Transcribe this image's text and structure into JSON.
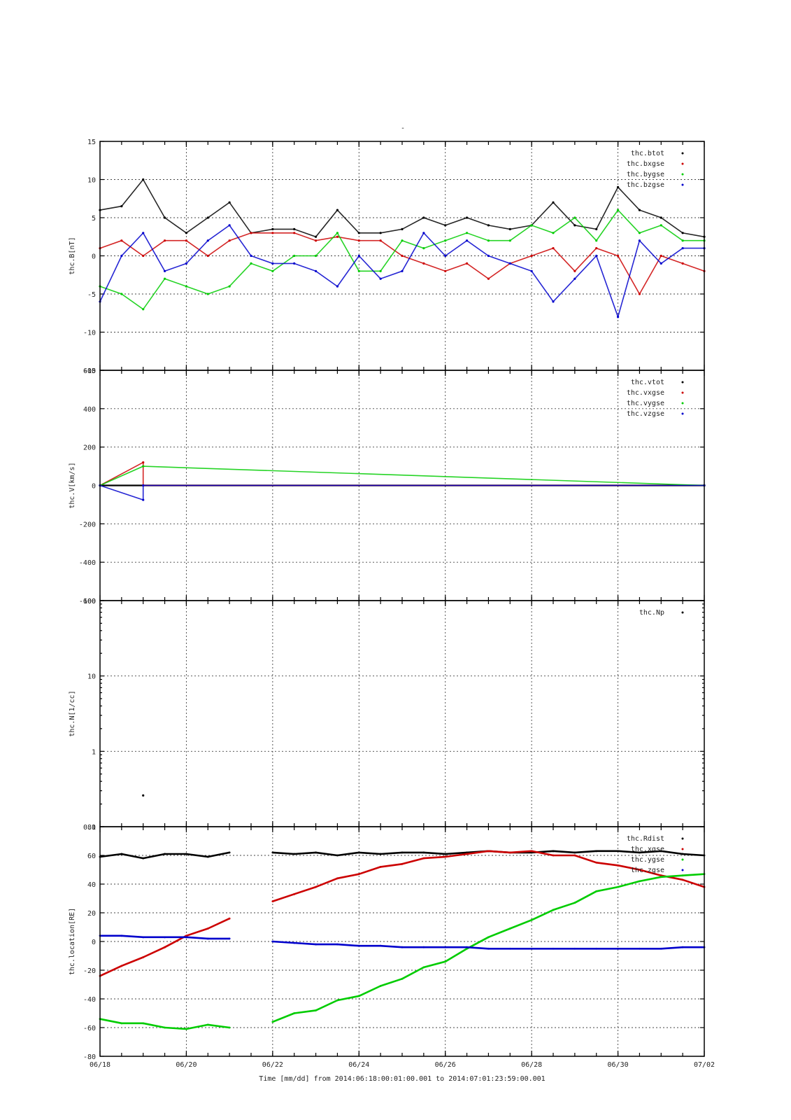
{
  "page_title": "-",
  "x_axis": {
    "title": "Time [mm/dd]  from 2014:06:18:00:01:00.001  to  2014:07:01:23:59:00.001",
    "range_days": [
      0,
      14
    ],
    "tick_labels": [
      "06/18",
      "06/20",
      "06/22",
      "06/24",
      "06/26",
      "06/28",
      "06/30",
      "07/02"
    ]
  },
  "colors": {
    "black": "#000000",
    "red": "#cc0000",
    "green": "#00cc00",
    "blue": "#0000cc"
  },
  "chart_data": [
    {
      "type": "scatter",
      "ylabel": "thc.B[nT]",
      "ylim": [
        -15,
        15
      ],
      "yticks": [
        15,
        10,
        5,
        0,
        -5,
        -10,
        -15
      ],
      "grid": true,
      "legend_position": "top-right",
      "series": [
        {
          "name": "thc.btot",
          "color": "#000000",
          "x": [
            0,
            0.5,
            1,
            1.5,
            2,
            2.5,
            3,
            3.5,
            4,
            4.5,
            5,
            5.5,
            6,
            6.5,
            7,
            7.5,
            8,
            8.5,
            9,
            9.5,
            10,
            10.5,
            11,
            11.5,
            12,
            12.5,
            13,
            13.5,
            14
          ],
          "values": [
            6,
            6.5,
            10,
            5,
            3,
            5,
            7,
            3,
            3.5,
            3.5,
            2.5,
            6,
            3,
            3,
            3.5,
            5,
            4,
            5,
            4,
            3.5,
            4,
            7,
            4,
            3.5,
            9,
            6,
            5,
            3,
            2.5
          ]
        },
        {
          "name": "thc.bxgse",
          "color": "#cc0000",
          "x": [
            0,
            0.5,
            1,
            1.5,
            2,
            2.5,
            3,
            3.5,
            4,
            4.5,
            5,
            5.5,
            6,
            6.5,
            7,
            7.5,
            8,
            8.5,
            9,
            9.5,
            10,
            10.5,
            11,
            11.5,
            12,
            12.5,
            13,
            13.5,
            14
          ],
          "values": [
            1,
            2,
            0,
            2,
            2,
            0,
            2,
            3,
            3,
            3,
            2,
            2.5,
            2,
            2,
            0,
            -1,
            -2,
            -1,
            -3,
            -1,
            0,
            1,
            -2,
            1,
            0,
            -5,
            0,
            -1,
            -2
          ]
        },
        {
          "name": "thc.bygse",
          "color": "#00cc00",
          "x": [
            0,
            0.5,
            1,
            1.5,
            2,
            2.5,
            3,
            3.5,
            4,
            4.5,
            5,
            5.5,
            6,
            6.5,
            7,
            7.5,
            8,
            8.5,
            9,
            9.5,
            10,
            10.5,
            11,
            11.5,
            12,
            12.5,
            13,
            13.5,
            14
          ],
          "values": [
            -4,
            -5,
            -7,
            -3,
            -4,
            -5,
            -4,
            -1,
            -2,
            0,
            0,
            3,
            -2,
            -2,
            2,
            1,
            2,
            3,
            2,
            2,
            4,
            3,
            5,
            2,
            6,
            3,
            4,
            2,
            2
          ]
        },
        {
          "name": "thc.bzgse",
          "color": "#0000cc",
          "x": [
            0,
            0.5,
            1,
            1.5,
            2,
            2.5,
            3,
            3.5,
            4,
            4.5,
            5,
            5.5,
            6,
            6.5,
            7,
            7.5,
            8,
            8.5,
            9,
            9.5,
            10,
            10.5,
            11,
            11.5,
            12,
            12.5,
            13,
            13.5,
            14
          ],
          "values": [
            -6,
            0,
            3,
            -2,
            -1,
            2,
            4,
            0,
            -1,
            -1,
            -2,
            -4,
            0,
            -3,
            -2,
            3,
            0,
            2,
            0,
            -1,
            -2,
            -6,
            -3,
            0,
            -8,
            2,
            -1,
            1,
            1
          ]
        }
      ]
    },
    {
      "type": "scatter",
      "ylabel": "thc.V[km/s]",
      "ylim": [
        -600,
        600
      ],
      "yticks": [
        600,
        400,
        200,
        0,
        -200,
        -400,
        -600
      ],
      "grid": true,
      "legend_position": "top-right",
      "series": [
        {
          "name": "thc.vtot",
          "color": "#000000",
          "x": [
            0,
            14
          ],
          "values": [
            0,
            0
          ]
        },
        {
          "name": "thc.vxgse",
          "color": "#cc0000",
          "x": [
            0,
            1,
            1,
            14
          ],
          "values": [
            0,
            120,
            0,
            0
          ]
        },
        {
          "name": "thc.vygse",
          "color": "#00cc00",
          "x": [
            0,
            1,
            14
          ],
          "values": [
            0,
            100,
            0
          ]
        },
        {
          "name": "thc.vzgse",
          "color": "#0000cc",
          "x": [
            0,
            1,
            1,
            14
          ],
          "values": [
            0,
            -75,
            0,
            0
          ]
        }
      ]
    },
    {
      "type": "scatter",
      "ylabel": "thc.N[1/cc]",
      "ylim": [
        0.1,
        100
      ],
      "scale": "log",
      "yticks": [
        100,
        10,
        1,
        0.1
      ],
      "grid": true,
      "legend_position": "top-right",
      "series": [
        {
          "name": "thc.Np",
          "color": "#000000",
          "x": [
            1.0
          ],
          "values": [
            0.26
          ]
        }
      ]
    },
    {
      "type": "line",
      "ylabel": "thc.location[RE]",
      "ylim": [
        -80,
        80
      ],
      "yticks": [
        80,
        60,
        40,
        20,
        0,
        -20,
        -40,
        -60,
        -80
      ],
      "grid": true,
      "legend_position": "top-right",
      "series": [
        {
          "name": "thc.Rdist",
          "color": "#000000",
          "x": [
            0,
            0.5,
            1.0,
            1.5,
            2.0,
            2.5,
            3.0,
            null,
            4.0,
            4.5,
            5.0,
            5.5,
            6.0,
            6.5,
            7.0,
            7.5,
            8.0,
            8.5,
            9.0,
            9.5,
            10.0,
            10.5,
            11.0,
            11.5,
            12.0,
            12.5,
            13.0,
            13.5,
            14.0
          ],
          "values": [
            59,
            61,
            58,
            61,
            61,
            59,
            62,
            null,
            62,
            61,
            62,
            60,
            62,
            61,
            62,
            62,
            61,
            62,
            63,
            62,
            62,
            63,
            62,
            63,
            63,
            62,
            63,
            61,
            60
          ]
        },
        {
          "name": "thc.xgse",
          "color": "#cc0000",
          "x": [
            0,
            0.5,
            1.0,
            1.5,
            2.0,
            2.5,
            3.0,
            null,
            4.0,
            4.5,
            5.0,
            5.5,
            6.0,
            6.5,
            7.0,
            7.5,
            8.0,
            8.5,
            9.0,
            9.5,
            10.0,
            10.5,
            11.0,
            11.5,
            12.0,
            12.5,
            13.0,
            13.5,
            14.0
          ],
          "values": [
            -24,
            -17,
            -11,
            -4,
            4,
            9,
            16,
            null,
            28,
            33,
            38,
            44,
            47,
            52,
            54,
            58,
            59,
            61,
            63,
            62,
            63,
            60,
            60,
            55,
            53,
            50,
            46,
            43,
            38
          ]
        },
        {
          "name": "thc.ygse",
          "color": "#00cc00",
          "x": [
            0,
            0.5,
            1.0,
            1.5,
            2.0,
            2.5,
            3.0,
            null,
            4.0,
            4.5,
            5.0,
            5.5,
            6.0,
            6.5,
            7.0,
            7.5,
            8.0,
            8.5,
            9.0,
            9.5,
            10.0,
            10.5,
            11.0,
            11.5,
            12.0,
            12.5,
            13.0,
            13.5,
            14.0
          ],
          "values": [
            -54,
            -57,
            -57,
            -60,
            -61,
            -58,
            -60,
            null,
            -56,
            -50,
            -48,
            -41,
            -38,
            -31,
            -26,
            -18,
            -14,
            -5,
            3,
            9,
            15,
            22,
            27,
            35,
            38,
            42,
            45,
            46,
            47
          ]
        },
        {
          "name": "thc.zgse",
          "color": "#0000cc",
          "x": [
            0,
            0.5,
            1.0,
            1.5,
            2.0,
            2.5,
            3.0,
            null,
            4.0,
            4.5,
            5.0,
            5.5,
            6.0,
            6.5,
            7.0,
            7.5,
            8.0,
            8.5,
            9.0,
            9.5,
            10.0,
            10.5,
            11.0,
            11.5,
            12.0,
            12.5,
            13.0,
            13.5,
            14.0
          ],
          "values": [
            4,
            4,
            3,
            3,
            3,
            2,
            2,
            null,
            0,
            -1,
            -2,
            -2,
            -3,
            -3,
            -4,
            -4,
            -4,
            -4,
            -5,
            -5,
            -5,
            -5,
            -5,
            -5,
            -5,
            -5,
            -5,
            -4,
            -4
          ]
        }
      ]
    }
  ]
}
